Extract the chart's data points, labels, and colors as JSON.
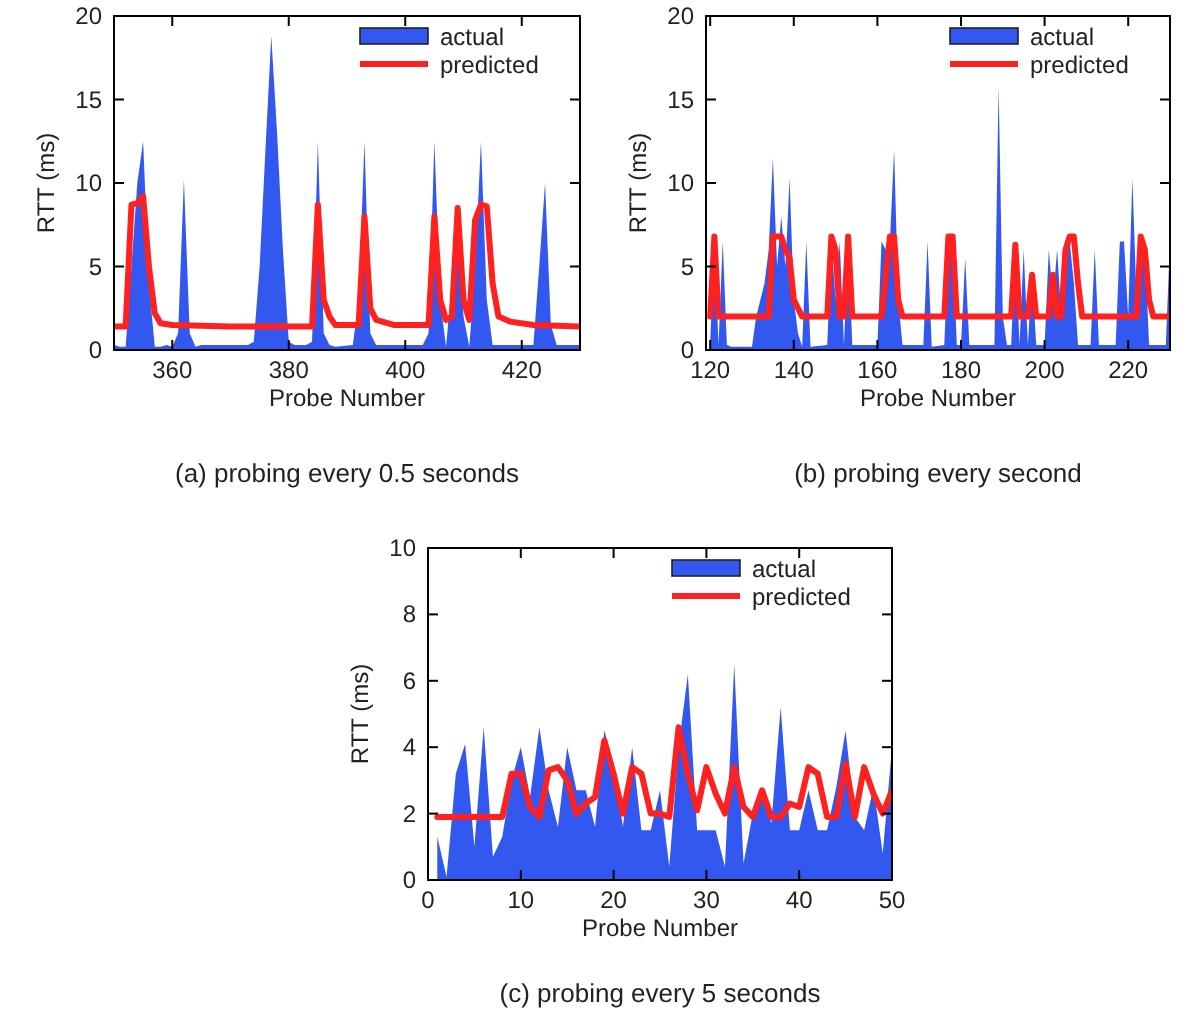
{
  "chart_data": [
    {
      "type": "area",
      "title": "(a) probing every 0.5 seconds",
      "xlabel": "Probe Number",
      "ylabel": "RTT (ms)",
      "xlim": [
        350,
        430
      ],
      "xticks": [
        360,
        380,
        400,
        420
      ],
      "ylim": [
        0,
        20
      ],
      "yticks": [
        0,
        5,
        10,
        15,
        20
      ],
      "grid": false,
      "legend": "top right",
      "series": [
        {
          "name": "actual",
          "color": "#3358f0",
          "x": [
            350,
            351,
            352,
            353,
            354,
            355,
            356,
            357,
            358,
            359,
            360,
            361,
            362,
            363,
            364,
            365,
            373,
            374,
            375,
            376,
            377,
            378,
            379,
            380,
            381,
            383,
            384,
            385,
            386,
            387,
            388,
            391,
            392,
            393,
            394,
            395,
            403,
            404,
            405,
            406,
            407,
            408,
            409,
            410,
            411,
            412,
            413,
            414,
            415,
            422,
            423,
            424,
            425,
            426,
            430
          ],
          "values": [
            0.3,
            0.2,
            0.2,
            5,
            10,
            12.5,
            4,
            0.2,
            0.2,
            0.3,
            0.2,
            1,
            10.2,
            1,
            0.2,
            0.3,
            0.3,
            0.5,
            5,
            12,
            18.8,
            13,
            6,
            0.5,
            0.3,
            0.3,
            0.5,
            12.5,
            1,
            0.3,
            0.2,
            0.3,
            3,
            12.5,
            1,
            0.3,
            0.3,
            1,
            12.5,
            3,
            0.2,
            4,
            8.5,
            2,
            0.2,
            5,
            12.5,
            3,
            0.3,
            0.3,
            5,
            10,
            1.5,
            0.3,
            0.3
          ]
        },
        {
          "name": "predicted",
          "type": "line",
          "color": "#ff2020",
          "x": [
            350,
            352,
            353,
            354,
            355,
            356,
            357,
            358,
            360,
            370,
            384,
            385,
            386,
            387,
            388,
            392,
            393,
            394,
            395,
            398,
            404,
            405,
            406,
            407,
            408,
            409,
            410,
            411,
            412,
            413,
            414,
            415,
            416,
            418,
            422,
            430
          ],
          "values": [
            1.4,
            1.4,
            8.7,
            8.8,
            9.2,
            5,
            2.2,
            1.6,
            1.5,
            1.4,
            1.4,
            8.7,
            3,
            2,
            1.5,
            1.5,
            8,
            2.5,
            1.8,
            1.5,
            1.5,
            8,
            3,
            1.8,
            2,
            8.5,
            3,
            1.8,
            7.8,
            8.7,
            8.6,
            4,
            2,
            1.7,
            1.5,
            1.4
          ]
        }
      ]
    },
    {
      "type": "area",
      "title": "(b) probing every second",
      "xlabel": "Probe Number",
      "ylabel": "RTT (ms)",
      "xlim": [
        119,
        230
      ],
      "xticks": [
        120,
        140,
        160,
        180,
        200,
        220
      ],
      "ylim": [
        0,
        20
      ],
      "yticks": [
        0,
        5,
        10,
        15,
        20
      ],
      "grid": false,
      "legend": "top right",
      "series": [
        {
          "name": "actual",
          "color": "#3358f0",
          "x": [
            120,
            121,
            122,
            123,
            124,
            125,
            130,
            131,
            132,
            133,
            134,
            135,
            136,
            137,
            138,
            139,
            140,
            141,
            142,
            143,
            144,
            148,
            149,
            150,
            151,
            152,
            153,
            154,
            160,
            161,
            162,
            163,
            164,
            165,
            166,
            171,
            172,
            173,
            176,
            177,
            178,
            179,
            180,
            181,
            182,
            188,
            189,
            190,
            191,
            192,
            193,
            194,
            195,
            196,
            197,
            198,
            200,
            201,
            202,
            203,
            204,
            205,
            206,
            207,
            208,
            211,
            212,
            213,
            217,
            218,
            219,
            220,
            221,
            222,
            223,
            224,
            225,
            229,
            230
          ],
          "values": [
            0.5,
            6.5,
            0.3,
            6.5,
            0.3,
            0.2,
            0.2,
            2,
            3,
            4,
            6,
            11.5,
            5,
            8,
            5,
            10.3,
            3,
            1,
            0.2,
            6.5,
            0.2,
            0.3,
            6.5,
            3,
            6.5,
            0.3,
            6.5,
            0.3,
            0.3,
            6.5,
            6,
            6.5,
            12,
            3,
            0.3,
            0.3,
            6.5,
            0.2,
            0.3,
            6.5,
            6.5,
            0.3,
            0.3,
            5.5,
            0.3,
            0.3,
            15.8,
            2,
            0.3,
            0.3,
            6.3,
            0.3,
            6,
            0.3,
            4.5,
            0.3,
            0.3,
            6,
            3,
            6,
            2,
            6,
            6.5,
            4,
            0.3,
            0.3,
            6,
            0.3,
            0.3,
            6.5,
            6.5,
            2,
            10.3,
            3,
            6.5,
            6,
            0.3,
            0.3,
            6.5
          ]
        },
        {
          "name": "predicted",
          "type": "line",
          "color": "#ff2020",
          "x": [
            120,
            121,
            122,
            134,
            135,
            137,
            138,
            139,
            140,
            141,
            142,
            148,
            149,
            150,
            151,
            152,
            153,
            154,
            161,
            163,
            164,
            165,
            166,
            176,
            177,
            178,
            179,
            192,
            193,
            194,
            196,
            197,
            198,
            201,
            202,
            203,
            204,
            205,
            206,
            207,
            208,
            209,
            222,
            223,
            224,
            225,
            226,
            230
          ],
          "values": [
            2,
            6.8,
            2,
            2,
            6.8,
            6.8,
            6,
            5.5,
            3,
            2.5,
            2,
            2,
            6.8,
            6,
            2,
            2,
            6.8,
            2,
            2,
            6.8,
            6.8,
            3,
            2,
            2,
            6.8,
            6.8,
            2,
            2,
            6.3,
            2,
            2,
            4.5,
            2,
            2,
            4.5,
            2,
            2,
            6,
            6.8,
            6.8,
            4,
            2,
            2,
            6.8,
            6,
            3,
            2,
            2
          ]
        }
      ]
    },
    {
      "type": "area",
      "title": "(c) probing every 5 seconds",
      "xlabel": "Probe Number",
      "ylabel": "RTT (ms)",
      "xlim": [
        0,
        50
      ],
      "xticks": [
        0,
        10,
        20,
        30,
        40,
        50
      ],
      "ylim": [
        0,
        10
      ],
      "yticks": [
        0,
        2,
        4,
        6,
        8,
        10
      ],
      "grid": false,
      "legend": "top right",
      "series": [
        {
          "name": "actual",
          "color": "#3358f0",
          "x": [
            1,
            2,
            3,
            4,
            5,
            6,
            7,
            8,
            9,
            10,
            11,
            12,
            13,
            14,
            15,
            16,
            17,
            18,
            19,
            20,
            21,
            22,
            23,
            24,
            25,
            26,
            27,
            28,
            29,
            30,
            31,
            32,
            33,
            34,
            35,
            36,
            37,
            38,
            39,
            40,
            41,
            42,
            43,
            44,
            45,
            46,
            47,
            48,
            49,
            50
          ],
          "values": [
            1.3,
            0.1,
            3.2,
            4.1,
            1,
            4.6,
            0.7,
            1.3,
            3,
            4,
            2.5,
            4.6,
            2.7,
            1.6,
            4,
            2.7,
            2.7,
            1.6,
            4.5,
            3.5,
            1.6,
            4,
            1.5,
            1.5,
            2.7,
            0.4,
            4,
            6.2,
            1.5,
            1.5,
            1.5,
            0.4,
            6.5,
            0.5,
            2,
            2.7,
            1.7,
            5.2,
            1.5,
            1.5,
            2.7,
            1.5,
            1.5,
            2.8,
            4.5,
            1.9,
            1.5,
            2.8,
            0.8,
            4
          ]
        },
        {
          "name": "predicted",
          "type": "line",
          "color": "#ff2020",
          "x": [
            1,
            8,
            9,
            10,
            11,
            12,
            13,
            14,
            15,
            16,
            17,
            18,
            19,
            20,
            21,
            22,
            23,
            24,
            25,
            26,
            27,
            28,
            29,
            30,
            31,
            32,
            33,
            34,
            35,
            36,
            37,
            38,
            39,
            40,
            41,
            42,
            43,
            44,
            45,
            46,
            47,
            48,
            49,
            50
          ],
          "values": [
            1.9,
            1.9,
            3.2,
            3.2,
            2.2,
            1.9,
            3.3,
            3.4,
            3,
            2,
            2.3,
            2.5,
            4.2,
            3.2,
            2,
            3.4,
            3.2,
            2,
            2,
            1.9,
            4.6,
            3.2,
            2.1,
            3.4,
            2.6,
            2,
            3.4,
            2.2,
            1.9,
            2.7,
            1.9,
            1.9,
            2.3,
            2.2,
            3.4,
            3.2,
            1.9,
            1.9,
            3.5,
            1.9,
            3.4,
            2.6,
            2,
            2.7
          ]
        }
      ]
    }
  ]
}
